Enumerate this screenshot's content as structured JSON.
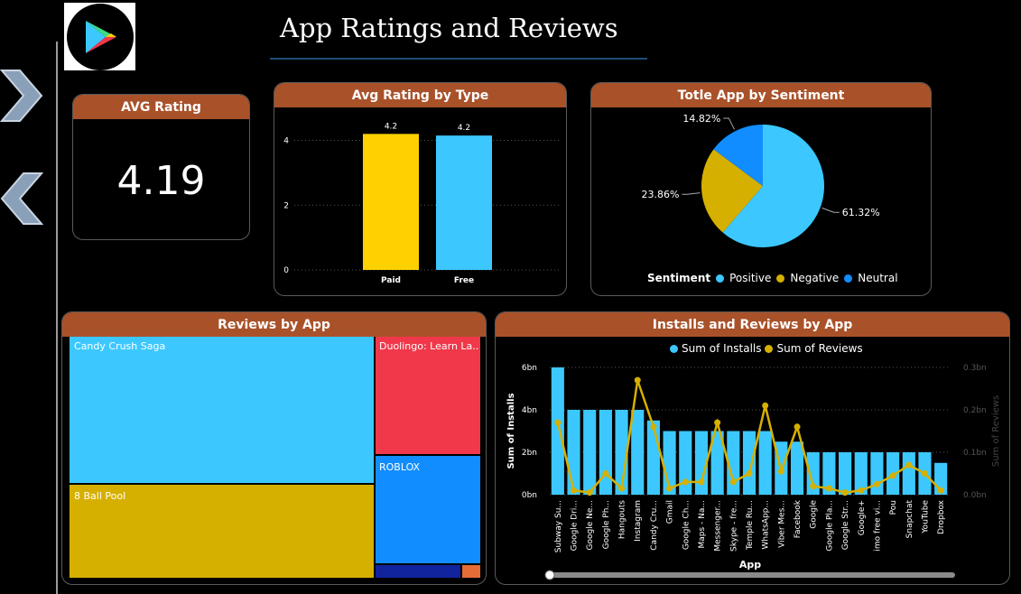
{
  "header": {
    "title": "App Ratings and Reviews",
    "logo": "google-play-logo"
  },
  "nav": {
    "next_icon": "chevron-right-icon",
    "prev_icon": "chevron-left-icon"
  },
  "colors": {
    "card_header": "#a9522a",
    "cyan": "#3cc8ff",
    "gold": "#d6b000",
    "yellow": "#ffd100",
    "blue": "#118dff",
    "red": "#f0384a",
    "navy": "#12239e",
    "orange": "#e66c37"
  },
  "kpi": {
    "title": "AVG Rating",
    "value": "4.19"
  },
  "chart_data": [
    {
      "type": "bar",
      "title": "Avg Rating by Type",
      "categories": [
        "Paid",
        "Free"
      ],
      "values": [
        4.2,
        4.15
      ],
      "data_labels": [
        "4.2",
        "4.2"
      ],
      "yticks": [
        "0",
        "2",
        "4"
      ],
      "ylim": [
        0,
        4.6
      ],
      "colors": [
        "#ffd100",
        "#3cc8ff"
      ],
      "grid": true
    },
    {
      "type": "pie",
      "title": "Totle App by Sentiment",
      "legend_title": "Sentiment",
      "legend_position": "bottom",
      "slices": [
        {
          "name": "Positive",
          "value": 61.32,
          "label": "61.32%",
          "color": "#3cc8ff"
        },
        {
          "name": "Negative",
          "value": 23.86,
          "label": "23.86%",
          "color": "#d6b000"
        },
        {
          "name": "Neutral",
          "value": 14.82,
          "label": "14.82%",
          "color": "#118dff"
        }
      ]
    },
    {
      "type": "treemap",
      "title": "Reviews by App",
      "items": [
        {
          "name": "Candy Crush Saga",
          "value": 44,
          "color": "#3cc8ff"
        },
        {
          "name": "8 Ball Pool",
          "value": 34,
          "color": "#d6b000"
        },
        {
          "name": "Duolingo: Learn La...",
          "value": 10,
          "color": "#f0384a"
        },
        {
          "name": "ROBLOX",
          "value": 9,
          "color": "#118dff"
        },
        {
          "name": "",
          "value": 1.3,
          "color": "#12239e"
        },
        {
          "name": "",
          "value": 0.3,
          "color": "#e66c37"
        }
      ]
    },
    {
      "type": "bar+line",
      "title": "Installs and Reviews by App",
      "xlabel": "App",
      "ylabel": "Sum of Installs",
      "y2label": "Sum of Reviews",
      "legend_position": "top",
      "series": [
        {
          "name": "Sum of Installs",
          "color": "#3cc8ff"
        },
        {
          "name": "Sum of Reviews",
          "color": "#d6b000"
        }
      ],
      "yticks": [
        "0bn",
        "2bn",
        "4bn",
        "6bn"
      ],
      "ylim": [
        0,
        6
      ],
      "y2ticks": [
        "0.0bn",
        "0.1bn",
        "0.2bn",
        "0.3bn"
      ],
      "y2lim": [
        0,
        0.3
      ],
      "categories": [
        "Subway Su...",
        "Google Dri...",
        "Google Ne...",
        "Google Ph...",
        "Hangouts",
        "Instagram",
        "Candy Cru...",
        "Gmail",
        "Google Ch...",
        "Maps - Na...",
        "Messenger...",
        "Skype - fre...",
        "Temple Ru...",
        "WhatsApp...",
        "Viber Mes...",
        "Facebook",
        "Google",
        "Google Pla...",
        "Google Str...",
        "Google+",
        "imo free vi...",
        "Pou",
        "Snapchat",
        "YouTube",
        "Dropbox"
      ],
      "installs": [
        6,
        4,
        4,
        4,
        4,
        4,
        3.5,
        3,
        3,
        3,
        3,
        3,
        3,
        3,
        2.5,
        2.5,
        2,
        2,
        2,
        2,
        2,
        2,
        2,
        2,
        1.5
      ],
      "reviews": [
        0.17,
        0.01,
        0.005,
        0.05,
        0.015,
        0.27,
        0.16,
        0.015,
        0.03,
        0.03,
        0.17,
        0.03,
        0.05,
        0.21,
        0.055,
        0.16,
        0.02,
        0.015,
        0.005,
        0.01,
        0.025,
        0.045,
        0.07,
        0.05,
        0.01
      ]
    }
  ]
}
